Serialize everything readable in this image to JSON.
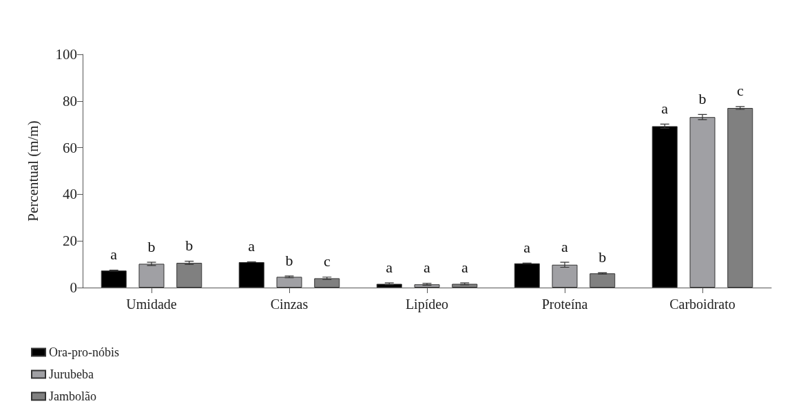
{
  "chart_data": {
    "type": "bar",
    "ylabel": "Percentual (m/m)",
    "categories": [
      "Umidade",
      "Cinzas",
      "Lipídeo",
      "Proteína",
      "Carboidrato"
    ],
    "series": [
      {
        "name": "Ora-pro-nóbis",
        "color": "#000000",
        "values": [
          7.3,
          10.9,
          1.6,
          10.4,
          69.2
        ],
        "errors": [
          0.2,
          0.1,
          0.4,
          0.1,
          0.9
        ],
        "value_labels": [
          "a",
          "a",
          "a",
          "a",
          "a"
        ]
      },
      {
        "name": "Jurubeba",
        "color": "#a0a0a4",
        "values": [
          10.2,
          4.6,
          1.4,
          9.8,
          73.1
        ],
        "errors": [
          0.7,
          0.4,
          0.4,
          1.1,
          1.1
        ],
        "value_labels": [
          "b",
          "b",
          "a",
          "a",
          "b"
        ]
      },
      {
        "name": "Jambolão",
        "color": "#808080",
        "values": [
          10.6,
          4.0,
          1.6,
          6.1,
          77.0
        ],
        "errors": [
          0.7,
          0.5,
          0.4,
          0.3,
          0.6
        ],
        "value_labels": [
          "b",
          "c",
          "a",
          "b",
          "c"
        ]
      }
    ],
    "ylim": [
      0,
      100
    ],
    "yticks": [
      0,
      20,
      40,
      60,
      80,
      100
    ],
    "grid": false,
    "legend": "bottom left"
  }
}
